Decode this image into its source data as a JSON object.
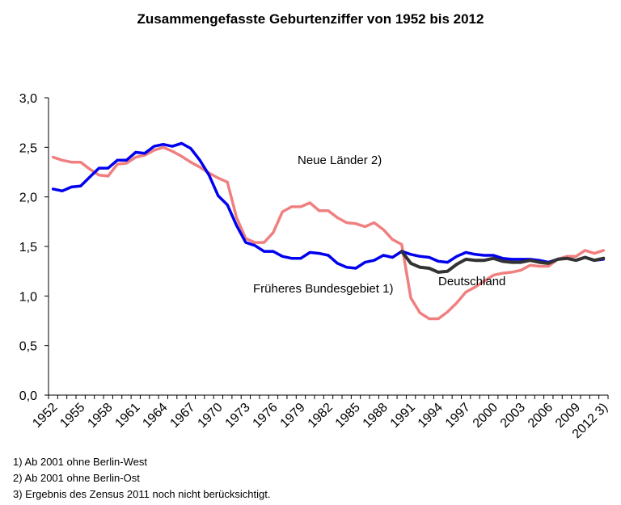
{
  "chart_data": {
    "type": "line",
    "title": "Zusammengefasste Geburtenziffer von 1952 bis 2012",
    "xlabel": "",
    "ylabel": "",
    "ylim": [
      0,
      3
    ],
    "yticks": [
      "0,0",
      "0,5",
      "1,0",
      "1,5",
      "2,0",
      "2,5",
      "3,0"
    ],
    "xtick_labels": [
      "1952",
      "1955",
      "1958",
      "1961",
      "1964",
      "1967",
      "1970",
      "1973",
      "1976",
      "1979",
      "1982",
      "1985",
      "1988",
      "1991",
      "1994",
      "1997",
      "2000",
      "2003",
      "2006",
      "2009",
      "2012 3)"
    ],
    "grid": false,
    "colors": {
      "frueheres": "#0000ee",
      "neue": "#f08080",
      "deutschland": "#333333"
    },
    "series": [
      {
        "key": "frueheres",
        "label": "Früheres Bundesgebiet 1)",
        "x": [
          1952,
          1953,
          1954,
          1955,
          1956,
          1957,
          1958,
          1959,
          1960,
          1961,
          1962,
          1963,
          1964,
          1965,
          1966,
          1967,
          1968,
          1969,
          1970,
          1971,
          1972,
          1973,
          1974,
          1975,
          1976,
          1977,
          1978,
          1979,
          1980,
          1981,
          1982,
          1983,
          1984,
          1985,
          1986,
          1987,
          1988,
          1989,
          1990,
          1991,
          1992,
          1993,
          1994,
          1995,
          1996,
          1997,
          1998,
          1999,
          2000,
          2001,
          2002,
          2003,
          2004,
          2005,
          2006,
          2007,
          2008,
          2009,
          2010,
          2011,
          2012
        ],
        "values": [
          2.08,
          2.06,
          2.1,
          2.11,
          2.2,
          2.29,
          2.29,
          2.37,
          2.37,
          2.45,
          2.44,
          2.51,
          2.53,
          2.51,
          2.54,
          2.49,
          2.37,
          2.22,
          2.01,
          1.92,
          1.71,
          1.54,
          1.51,
          1.45,
          1.45,
          1.4,
          1.38,
          1.38,
          1.44,
          1.43,
          1.41,
          1.33,
          1.29,
          1.28,
          1.34,
          1.36,
          1.41,
          1.39,
          1.45,
          1.42,
          1.4,
          1.39,
          1.35,
          1.34,
          1.4,
          1.44,
          1.42,
          1.41,
          1.41,
          1.38,
          1.37,
          1.37,
          1.37,
          1.36,
          1.34,
          1.37,
          1.38,
          1.36,
          1.39,
          1.36,
          1.37
        ]
      },
      {
        "key": "neue",
        "label": "Neue Länder 2)",
        "x": [
          1952,
          1953,
          1954,
          1955,
          1956,
          1957,
          1958,
          1959,
          1960,
          1961,
          1962,
          1963,
          1964,
          1965,
          1966,
          1967,
          1968,
          1969,
          1970,
          1971,
          1972,
          1973,
          1974,
          1975,
          1976,
          1977,
          1978,
          1979,
          1980,
          1981,
          1982,
          1983,
          1984,
          1985,
          1986,
          1987,
          1988,
          1989,
          1990,
          1991,
          1992,
          1993,
          1994,
          1995,
          1996,
          1997,
          1998,
          1999,
          2000,
          2001,
          2002,
          2003,
          2004,
          2005,
          2006,
          2007,
          2008,
          2009,
          2010,
          2011,
          2012
        ],
        "values": [
          2.4,
          2.37,
          2.35,
          2.35,
          2.28,
          2.22,
          2.21,
          2.33,
          2.34,
          2.4,
          2.42,
          2.47,
          2.5,
          2.46,
          2.41,
          2.35,
          2.3,
          2.24,
          2.19,
          2.15,
          1.79,
          1.58,
          1.54,
          1.54,
          1.64,
          1.85,
          1.9,
          1.9,
          1.94,
          1.86,
          1.86,
          1.79,
          1.74,
          1.73,
          1.7,
          1.74,
          1.67,
          1.57,
          1.52,
          0.98,
          0.83,
          0.77,
          0.77,
          0.84,
          0.93,
          1.04,
          1.09,
          1.15,
          1.21,
          1.23,
          1.24,
          1.26,
          1.31,
          1.3,
          1.3,
          1.37,
          1.4,
          1.4,
          1.46,
          1.43,
          1.46
        ]
      },
      {
        "key": "deutschland",
        "label": "Deutschland",
        "x": [
          1990,
          1991,
          1992,
          1993,
          1994,
          1995,
          1996,
          1997,
          1998,
          1999,
          2000,
          2001,
          2002,
          2003,
          2004,
          2005,
          2006,
          2007,
          2008,
          2009,
          2010,
          2011,
          2012
        ],
        "values": [
          1.45,
          1.33,
          1.29,
          1.28,
          1.24,
          1.25,
          1.32,
          1.37,
          1.36,
          1.36,
          1.38,
          1.35,
          1.34,
          1.34,
          1.36,
          1.34,
          1.33,
          1.37,
          1.38,
          1.36,
          1.39,
          1.36,
          1.38
        ]
      }
    ]
  },
  "footnotes": {
    "note1": "1) Ab 2001 ohne Berlin-West",
    "note2": "2) Ab 2001 ohne Berlin-Ost",
    "note3": "3) Ergebnis des Zensus 2011 noch nicht berücksichtigt."
  }
}
